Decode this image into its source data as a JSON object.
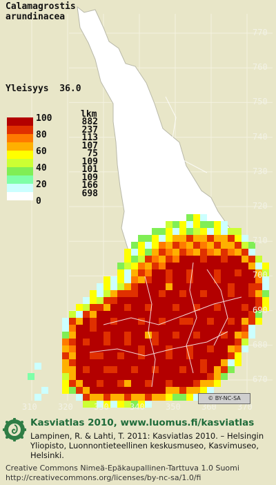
{
  "species": {
    "genus": "Calamagrostis",
    "epithet": "arundinacea"
  },
  "frequency": {
    "label": "Yleisyys",
    "value": "36.0"
  },
  "legend": {
    "count_header": "lkm",
    "ticks": [
      "100",
      "80",
      "60",
      "40",
      "20",
      "0"
    ],
    "classes": [
      {
        "color": "#b30000",
        "count": "882"
      },
      {
        "color": "#e03000",
        "count": "237"
      },
      {
        "color": "#ff7a00",
        "count": "113"
      },
      {
        "color": "#ffb000",
        "count": "107"
      },
      {
        "color": "#ffff00",
        "count": "75"
      },
      {
        "color": "#ccff33",
        "count": "109"
      },
      {
        "color": "#80ee55",
        "count": "101"
      },
      {
        "color": "#7fffa8",
        "count": "109"
      },
      {
        "color": "#ccffff",
        "count": "166"
      },
      {
        "color": "#ffffff",
        "count": "698"
      }
    ]
  },
  "grid_axes": {
    "y_ticks": [
      "770",
      "760",
      "750",
      "740",
      "730",
      "720",
      "710",
      "700",
      "690",
      "680",
      "670"
    ],
    "x_ticks": [
      "310",
      "320",
      "330",
      "340",
      "350",
      "360",
      "370"
    ]
  },
  "license_badge": "© BY-NC-SA",
  "footer": {
    "atlas_line": "Kasviatlas 2010, www.luomus.fi/kasviatlas",
    "citation": "Lampinen, R. & Lahti, T. 2011: Kasviatlas 2010. – Helsingin Yliopisto, Luonnontieteellinen keskusmuseo, Kasvimuseo, Helsinki.",
    "license_name": "Creative Commons Nimeä-Epäkaupallinen-Tarttuva 1.0 Suomi",
    "license_url": "http://creativecommons.org/licenses/by-nc-sa/1.0/fi"
  },
  "colors": {
    "background": "#e8e6c8",
    "grid": "#f4f2e0",
    "border": "#888888",
    "accent": "#1f6b3a"
  }
}
